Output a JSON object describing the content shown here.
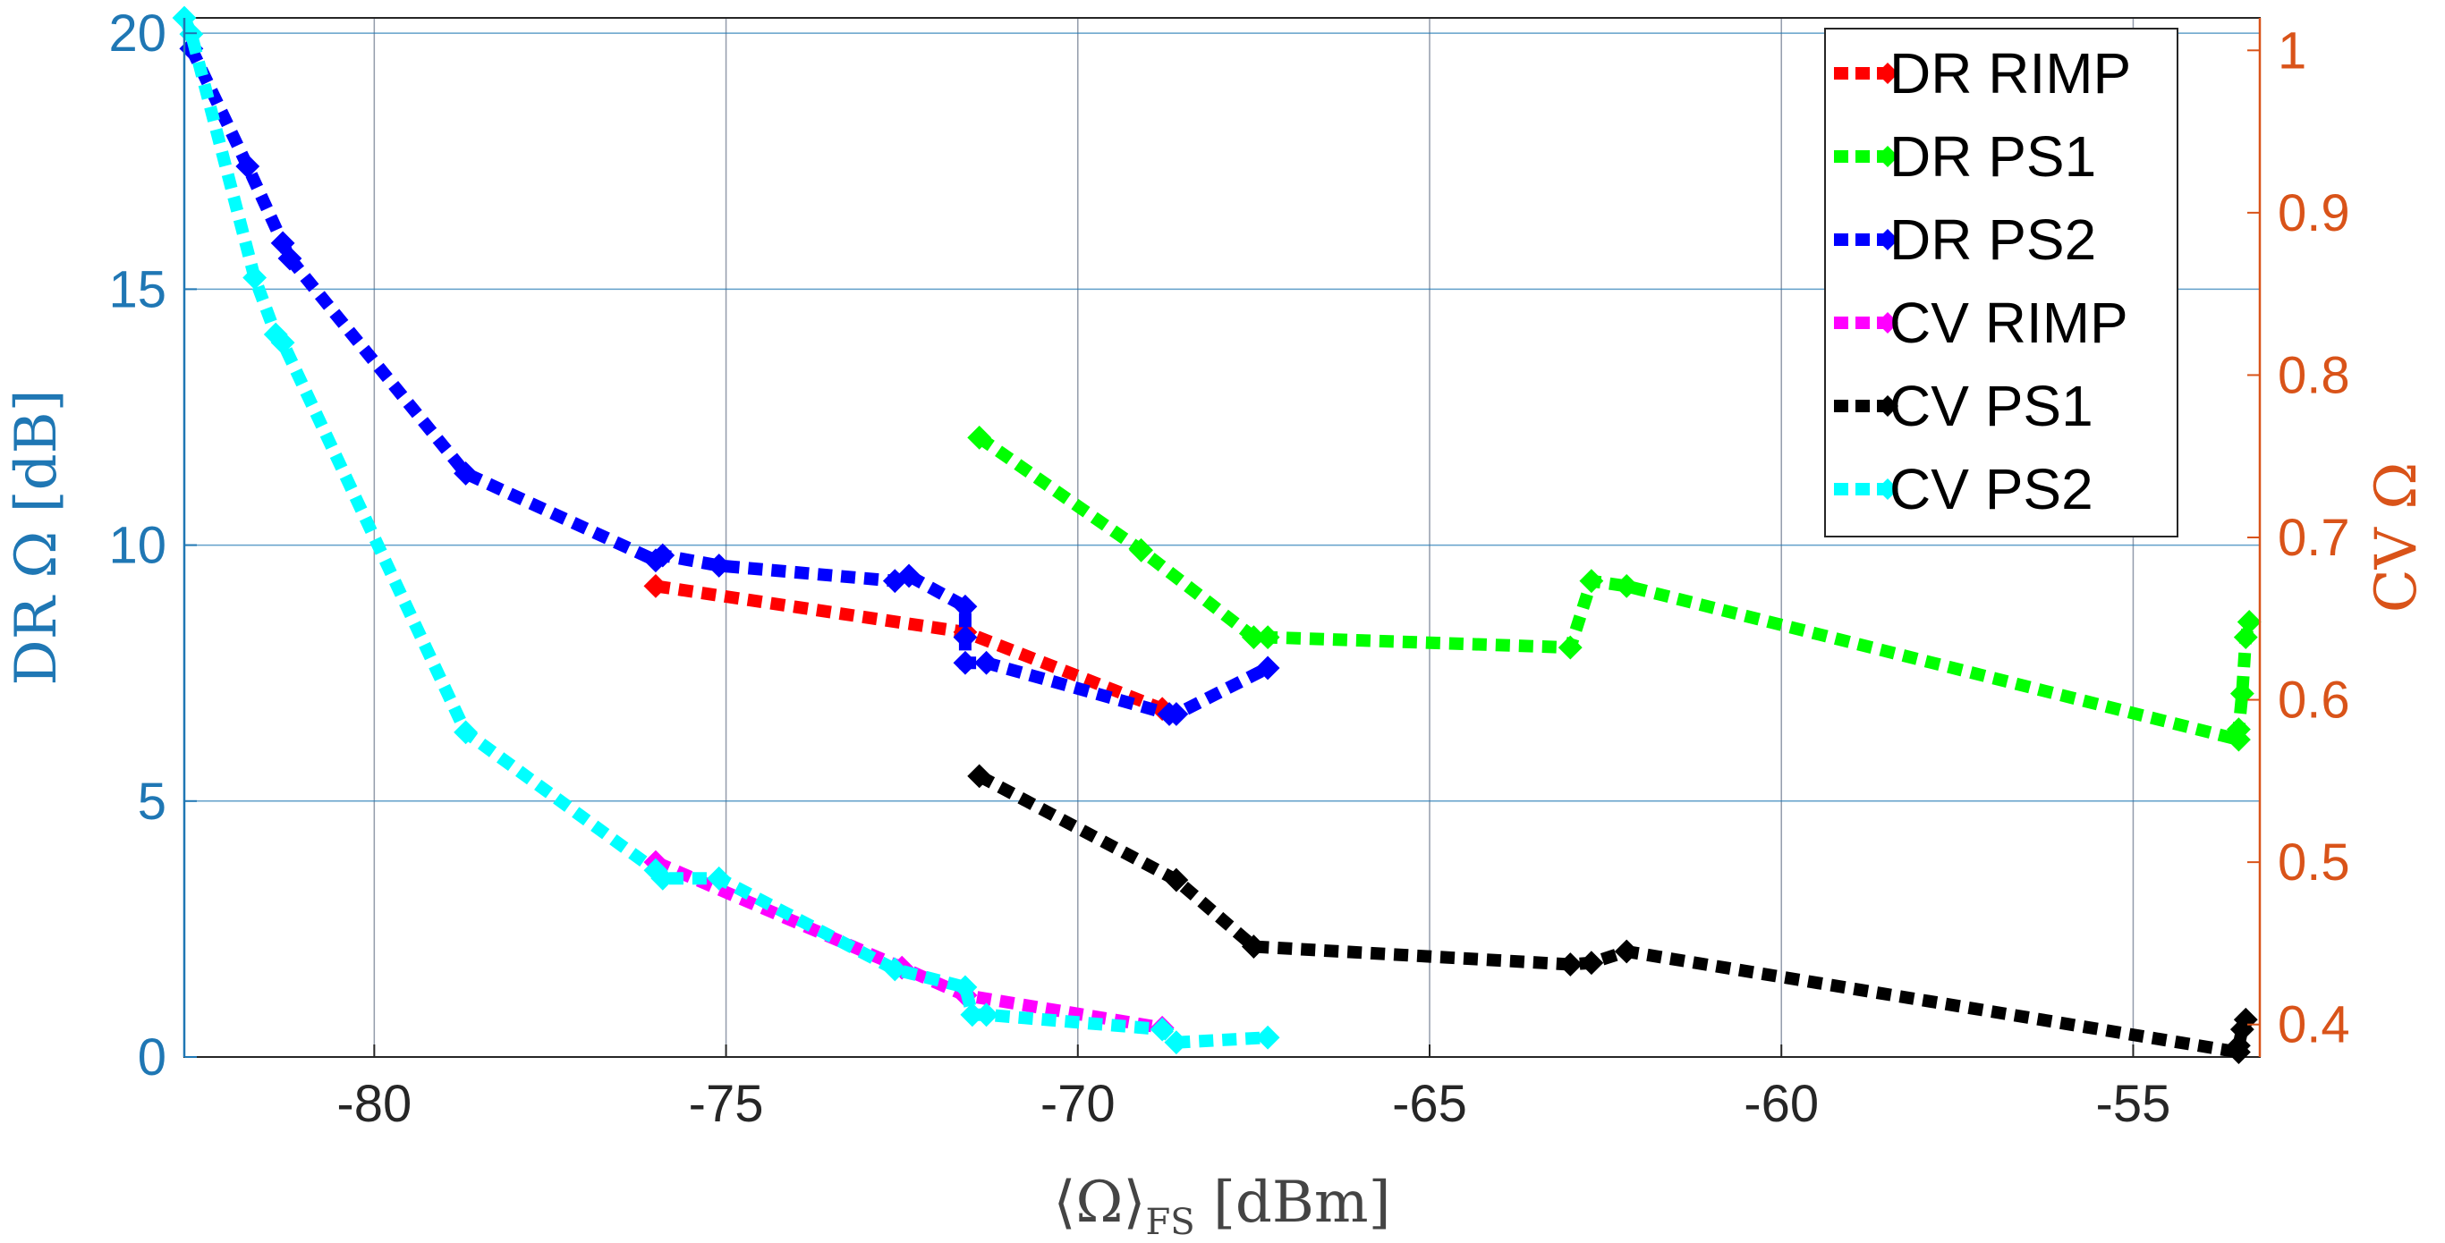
{
  "chart_data": {
    "type": "line",
    "title": "",
    "xlabel": "⟨Ω⟩",
    "xlabel_subscript": "FS",
    "xlabel_unit": " [dBm]",
    "ylabel_left": "DR Ω [dB]",
    "ylabel_right": "CV Ω",
    "xlim": [
      -82.7,
      -53.2
    ],
    "ylim_left": [
      0,
      20.3
    ],
    "ylim_right": [
      0.38,
      1.02
    ],
    "x_ticks": [
      -80,
      -75,
      -70,
      -65,
      -60,
      -55
    ],
    "x_tick_labels": [
      "-80",
      "-75",
      "-70",
      "-65",
      "-60",
      "-55"
    ],
    "y_left_ticks": [
      0,
      5,
      10,
      15,
      20
    ],
    "y_left_tick_labels": [
      "0",
      "5",
      "10",
      "15",
      "20"
    ],
    "y_right_ticks": [
      0.4,
      0.5,
      0.6,
      0.7,
      0.8,
      0.9,
      1.0
    ],
    "y_right_tick_labels": [
      "0.4",
      "0.5",
      "0.6",
      "0.7",
      "0.8",
      "0.9",
      "1"
    ],
    "grid": true,
    "legend_position": "top-right",
    "colors": {
      "left_axis": "#1f77b4",
      "right_axis": "#d95319",
      "grid": "#1f77b4"
    },
    "series": [
      {
        "name": "DR RIMP",
        "axis": "left",
        "color": "#ff0000",
        "x": [
          -76.0,
          -71.6,
          -68.8
        ],
        "y": [
          9.2,
          8.3,
          6.8
        ]
      },
      {
        "name": "DR PS1",
        "axis": "left",
        "color": "#00ff00",
        "x": [
          -71.4,
          -69.1,
          -67.5,
          -67.3,
          -63.0,
          -62.7,
          -62.2,
          -53.5,
          -53.5,
          -53.45,
          -53.4,
          -53.35
        ],
        "y": [
          12.1,
          9.9,
          8.2,
          8.2,
          8.0,
          9.3,
          9.2,
          6.2,
          6.4,
          7.1,
          8.2,
          8.5
        ]
      },
      {
        "name": "DR PS2",
        "axis": "left",
        "color": "#0000ff",
        "x": [
          -82.6,
          -81.8,
          -81.3,
          -81.2,
          -78.7,
          -76.0,
          -75.9,
          -75.1,
          -72.6,
          -72.4,
          -71.6,
          -71.6,
          -71.6,
          -71.3,
          -68.7,
          -68.6,
          -67.3
        ],
        "y": [
          19.7,
          17.4,
          15.9,
          15.6,
          11.4,
          9.7,
          9.8,
          9.6,
          9.3,
          9.4,
          8.8,
          8.2,
          7.7,
          7.7,
          6.7,
          6.7,
          7.6
        ]
      },
      {
        "name": "CV RIMP",
        "axis": "right",
        "color": "#ff00ff",
        "x": [
          -76.0,
          -72.5,
          -71.6,
          -68.8
        ],
        "y": [
          0.5,
          0.435,
          0.418,
          0.398
        ]
      },
      {
        "name": "CV PS1",
        "axis": "right",
        "color": "#000000",
        "x": [
          -71.4,
          -68.6,
          -67.5,
          -63.0,
          -62.7,
          -62.2,
          -53.5,
          -53.5,
          -53.45,
          -53.4
        ],
        "y": [
          0.553,
          0.489,
          0.448,
          0.437,
          0.438,
          0.445,
          0.383,
          0.387,
          0.397,
          0.403
        ]
      },
      {
        "name": "CV PS2",
        "axis": "right",
        "color": "#00ffff",
        "x": [
          -82.7,
          -82.6,
          -81.7,
          -81.4,
          -81.3,
          -78.7,
          -76.0,
          -75.9,
          -75.1,
          -72.6,
          -71.6,
          -71.5,
          -71.3,
          -68.8,
          -68.6,
          -67.3
        ],
        "y": [
          1.02,
          1.01,
          0.86,
          0.825,
          0.82,
          0.58,
          0.495,
          0.49,
          0.49,
          0.434,
          0.423,
          0.406,
          0.406,
          0.397,
          0.389,
          0.392
        ]
      }
    ]
  }
}
